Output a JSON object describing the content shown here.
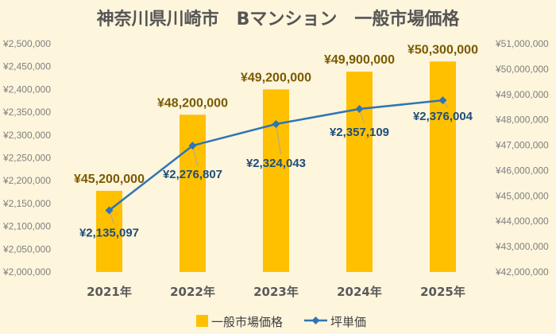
{
  "chart_data": {
    "type": "bar",
    "title": "神奈川県川崎市　Bマンション　一般市場価格",
    "categories": [
      "2021年",
      "2022年",
      "2023年",
      "2024年",
      "2025年"
    ],
    "series": [
      {
        "name": "一般市場価格",
        "type": "bar",
        "axis": "right",
        "color": "#ffc000",
        "values": [
          45200000,
          48200000,
          49200000,
          49900000,
          50300000
        ],
        "labels": [
          "¥45,200,000",
          "¥48,200,000",
          "¥49,200,000",
          "¥49,900,000",
          "¥50,300,000"
        ]
      },
      {
        "name": "坪単価",
        "type": "line",
        "axis": "left",
        "color": "#2e75b6",
        "values": [
          2135097,
          2276807,
          2324043,
          2357109,
          2376004
        ],
        "labels": [
          "¥2,135,097",
          "¥2,276,807",
          "¥2,324,043",
          "¥2,357,109",
          "¥2,376,004"
        ]
      }
    ],
    "left_axis": {
      "ylim": [
        2000000,
        2500000
      ],
      "ticks": [
        "¥2,000,000",
        "¥2,050,000",
        "¥2,100,000",
        "¥2,150,000",
        "¥2,200,000",
        "¥2,250,000",
        "¥2,300,000",
        "¥2,350,000",
        "¥2,400,000",
        "¥2,450,000",
        "¥2,500,000"
      ]
    },
    "right_axis": {
      "ylim": [
        42000000,
        51000000
      ],
      "ticks": [
        "¥42,000,000",
        "¥43,000,000",
        "¥44,000,000",
        "¥45,000,000",
        "¥46,000,000",
        "¥47,000,000",
        "¥48,000,000",
        "¥49,000,000",
        "¥50,000,000",
        "¥51,000,000"
      ]
    },
    "grid": false,
    "legend_position": "bottom"
  },
  "colors": {
    "background": "#fdf5dc",
    "bar": "#ffc000",
    "line": "#2e75b6"
  }
}
